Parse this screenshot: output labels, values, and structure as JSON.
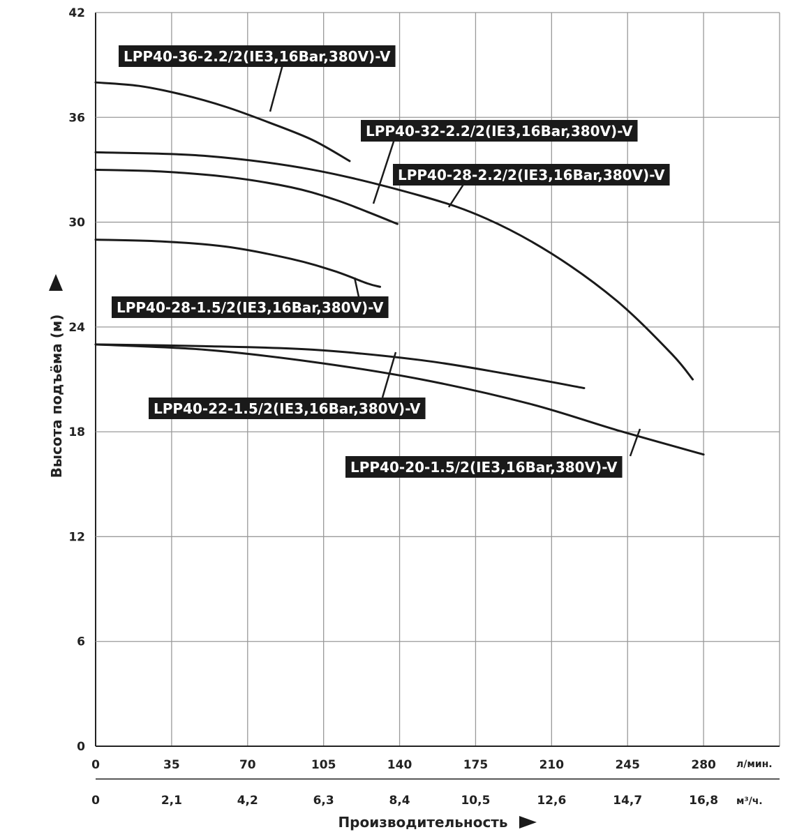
{
  "chart_data": {
    "type": "line",
    "ylabel": "Высота подъёма (м)",
    "xlabel": "Производительность",
    "x_unit_primary": "л/мин.",
    "x_unit_secondary": "м³/ч.",
    "xlim": [
      0,
      315
    ],
    "ylim": [
      0,
      42
    ],
    "x_ticks": [
      "0",
      "35",
      "70",
      "105",
      "140",
      "175",
      "210",
      "245",
      "280"
    ],
    "x_ticks_secondary": [
      "0",
      "2,1",
      "4,2",
      "6,3",
      "8,4",
      "10,5",
      "12,6",
      "14,7",
      "16,8"
    ],
    "y_ticks": [
      "0",
      "6",
      "12",
      "18",
      "24",
      "30",
      "36",
      "42"
    ],
    "grid": true,
    "colors": {
      "curve": "#1a1a1a",
      "grid": "#999999",
      "label_bg": "#1a1a1a",
      "label_text": "#ffffff"
    },
    "series": [
      {
        "name": "LPP40-36-2.2/2(IE3,16Bar,380V)-V",
        "x": [
          0,
          20,
          40,
          60,
          80,
          100,
          117
        ],
        "y": [
          38.0,
          37.8,
          37.3,
          36.6,
          35.7,
          34.7,
          33.5
        ]
      },
      {
        "name": "LPP40-32-2.2/2(IE3,16Bar,380V)-V",
        "x": [
          0,
          30,
          60,
          90,
          110,
          125,
          139
        ],
        "y": [
          33.0,
          32.9,
          32.6,
          32.0,
          31.3,
          30.6,
          29.9
        ]
      },
      {
        "name": "LPP40-28-2.2/2(IE3,16Bar,380V)-V",
        "x": [
          0,
          50,
          100,
          150,
          180,
          210,
          240,
          265,
          275
        ],
        "y": [
          34.0,
          33.8,
          33.0,
          31.5,
          30.2,
          28.2,
          25.5,
          22.5,
          21.0
        ]
      },
      {
        "name": "LPP40-28-1.5/2(IE3,16Bar,380V)-V",
        "x": [
          0,
          30,
          60,
          90,
          110,
          125,
          131
        ],
        "y": [
          29.0,
          28.9,
          28.6,
          27.9,
          27.2,
          26.5,
          26.3
        ]
      },
      {
        "name": "LPP40-22-1.5/2(IE3,16Bar,380V)-V",
        "x": [
          0,
          50,
          100,
          150,
          190,
          225
        ],
        "y": [
          23.0,
          22.9,
          22.7,
          22.1,
          21.3,
          20.5
        ]
      },
      {
        "name": "LPP40-20-1.5/2(IE3,16Bar,380V)-V",
        "x": [
          0,
          50,
          100,
          150,
          200,
          240,
          280
        ],
        "y": [
          23.0,
          22.7,
          22.0,
          21.0,
          19.6,
          18.1,
          16.7
        ]
      }
    ]
  }
}
